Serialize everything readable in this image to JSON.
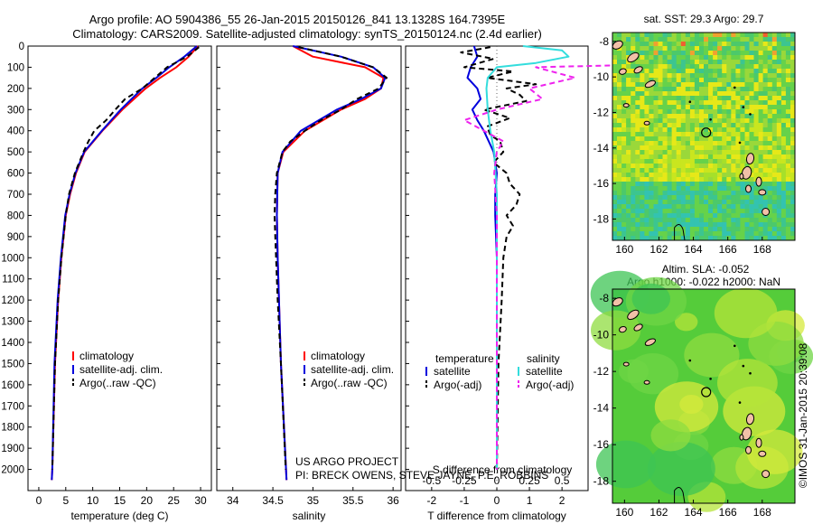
{
  "header": {
    "title_line1": "Argo profile: AO 5904386_55 26-Jan-2015 20150126_841 13.1328S 164.7395E",
    "title_line2": "Climatology: CARS2009. Satellite-adjusted climatology: synTS_20150124.nc (2.4d earlier)"
  },
  "colors": {
    "climatology": "#ff0000",
    "satellite": "#0000dd",
    "argo": "#000000",
    "salinity_satellite": "#33dddd",
    "salinity_argo": "#ee22ee",
    "land": "#f2c0a8"
  },
  "footer": {
    "project_line1": "US ARGO PROJECT",
    "project_line2": "PI: BRECK OWENS, STEVE JAYNE, P.E. ROBBINS",
    "stamp": "©IMOS 31-Jan-2015 20:39:08"
  },
  "maps": {
    "sst_title": "sat. SST: 29.3 Argo: 29.7",
    "sla_title_line1": "Altim. SLA: -0.052",
    "sla_title_line2": "Argo h1000: -0.022 h2000: NaN",
    "lon_ticks": [
      "160",
      "162",
      "164",
      "166",
      "168"
    ],
    "lat_ticks": [
      "-8",
      "-10",
      "-12",
      "-14",
      "-16",
      "-18"
    ],
    "float_lon": 164.74,
    "float_lat": -13.13
  },
  "chart_data": [
    {
      "type": "line",
      "name": "temperature",
      "xlabel": "temperature (deg C)",
      "ylabel": "",
      "xlim": [
        -2,
        32
      ],
      "ylim": [
        2100,
        0
      ],
      "xticks": [
        "0",
        "5",
        "10",
        "15",
        "20",
        "25",
        "30"
      ],
      "yticks": [
        "0",
        "100",
        "200",
        "300",
        "400",
        "500",
        "600",
        "700",
        "800",
        "900",
        "1000",
        "1100",
        "1200",
        "1300",
        "1400",
        "1500",
        "1600",
        "1700",
        "1800",
        "1900",
        "2000"
      ],
      "legend": [
        "climatology",
        "satellite-adj. clim.",
        "Argo(..raw -QC)"
      ],
      "series": [
        {
          "name": "climatology",
          "depth": [
            0,
            50,
            100,
            150,
            200,
            300,
            400,
            500,
            600,
            700,
            800,
            1000,
            1200,
            1500,
            2000,
            2050
          ],
          "values": [
            29.5,
            27.8,
            25.5,
            22.5,
            19.8,
            15.5,
            11.8,
            8.5,
            6.9,
            5.8,
            5.0,
            4.2,
            3.6,
            3.0,
            2.5,
            2.4
          ]
        },
        {
          "name": "satellite-adj. clim.",
          "depth": [
            0,
            50,
            100,
            150,
            200,
            300,
            400,
            500,
            600,
            700,
            800,
            1000,
            1200,
            1500,
            2000,
            2050
          ],
          "values": [
            29.3,
            27.0,
            24.2,
            21.8,
            19.2,
            15.2,
            11.7,
            8.4,
            6.8,
            5.7,
            4.9,
            4.1,
            3.5,
            2.9,
            2.5,
            2.4
          ]
        },
        {
          "name": "Argo(..raw -QC)",
          "depth": [
            5,
            50,
            100,
            150,
            200,
            250,
            300,
            350,
            400,
            450,
            500,
            600,
            700,
            800,
            900,
            1000,
            1200,
            1500,
            2000
          ],
          "values": [
            29.7,
            27.5,
            23.8,
            21.5,
            19.2,
            16.0,
            14.2,
            12.5,
            10.3,
            9.2,
            8.3,
            6.7,
            5.6,
            5.0,
            4.6,
            4.2,
            3.6,
            3.0,
            2.5
          ]
        }
      ]
    },
    {
      "type": "line",
      "name": "salinity",
      "xlabel": "salinity",
      "ylabel": "",
      "xlim": [
        33.8,
        36.1
      ],
      "ylim": [
        2100,
        0
      ],
      "xticks": [
        "34",
        "34.5",
        "35",
        "35.5",
        "36"
      ],
      "legend": [
        "climatology",
        "satellite-adj. clim.",
        "Argo(..raw -QC)"
      ],
      "series": [
        {
          "name": "climatology",
          "depth": [
            0,
            50,
            100,
            150,
            200,
            250,
            300,
            400,
            500,
            600,
            800,
            1000,
            1500,
            2050
          ],
          "values": [
            34.75,
            35.0,
            35.65,
            35.88,
            35.85,
            35.65,
            35.35,
            34.9,
            34.63,
            34.56,
            34.55,
            34.56,
            34.6,
            34.67
          ]
        },
        {
          "name": "satellite-adj. clim.",
          "depth": [
            0,
            50,
            100,
            150,
            200,
            250,
            300,
            400,
            500,
            600,
            800,
            1000,
            1500,
            2050
          ],
          "values": [
            34.75,
            35.35,
            35.75,
            35.9,
            35.85,
            35.6,
            35.3,
            34.85,
            34.62,
            34.56,
            34.55,
            34.56,
            34.6,
            34.67
          ]
        },
        {
          "name": "Argo(..raw -QC)",
          "depth": [
            5,
            50,
            100,
            150,
            200,
            250,
            300,
            350,
            400,
            450,
            500,
            600,
            700,
            800,
            1000,
            1200,
            1500,
            2000
          ],
          "values": [
            34.82,
            35.35,
            35.75,
            35.92,
            35.82,
            35.55,
            35.35,
            35.1,
            34.9,
            34.72,
            34.62,
            34.55,
            34.53,
            34.52,
            34.54,
            34.56,
            34.6,
            34.66
          ]
        }
      ]
    },
    {
      "type": "line",
      "name": "differences",
      "xlabel": "T difference from climatology",
      "xlabel_top": "S difference from climatology",
      "xlim": [
        -2.8,
        2.8
      ],
      "ylim": [
        2100,
        0
      ],
      "xticks": [
        "-2",
        "-1",
        "0",
        "1",
        "2"
      ],
      "xticks_top": [
        "-0.5",
        "-0.25",
        "0",
        "0.25",
        "0.5"
      ],
      "legend_headers": [
        "temperature",
        "salinity"
      ],
      "legend": [
        "satellite",
        "Argo(-adj)",
        "satellite",
        "Argo(-adj)"
      ],
      "series": [
        {
          "name": "temperature satellite",
          "depth": [
            0,
            50,
            100,
            150,
            200,
            250,
            300,
            350,
            400,
            500,
            600,
            700,
            800,
            1000,
            1500,
            2000
          ],
          "values": [
            -0.7,
            -0.6,
            -0.8,
            -0.9,
            -0.6,
            -0.5,
            -0.75,
            -0.6,
            -0.4,
            -0.1,
            0.0,
            -0.05,
            -0.05,
            0.0,
            0.0,
            0.0
          ]
        },
        {
          "name": "temperature Argo(-adj)",
          "depth": [
            5,
            30,
            60,
            100,
            120,
            150,
            180,
            200,
            230,
            260,
            300,
            340,
            380,
            420,
            450,
            500,
            550,
            600,
            650,
            700,
            750,
            800,
            850,
            900,
            1000,
            1200,
            1500,
            2000
          ],
          "values": [
            -0.2,
            -1.1,
            -0.1,
            -1.0,
            0.5,
            -0.3,
            1.2,
            0.3,
            0.7,
            0.9,
            -0.4,
            0.4,
            -0.3,
            -0.2,
            0.1,
            0.2,
            -0.1,
            0.3,
            0.4,
            0.7,
            0.6,
            0.3,
            0.5,
            0.3,
            0.2,
            0.15,
            0.05,
            0.0
          ]
        },
        {
          "name": "salinity satellite",
          "depth": [
            0,
            20,
            50,
            80,
            100,
            150,
            200,
            300,
            400,
            500,
            700,
            1000,
            1500,
            2000
          ],
          "values": [
            0.2,
            0.5,
            0.55,
            0.3,
            0.0,
            -0.07,
            -0.08,
            -0.07,
            -0.05,
            -0.02,
            0.0,
            0.0,
            0.0,
            0.0
          ]
        },
        {
          "name": "salinity Argo(-adj)",
          "depth": [
            20,
            40,
            60,
            80,
            100,
            150,
            200,
            250,
            300,
            350,
            400,
            450,
            500,
            600,
            800,
            1000,
            1500,
            2000
          ],
          "values": [
            0.9,
            1.4,
            0.9,
            1.7,
            0.3,
            0.6,
            0.25,
            0.35,
            0.0,
            -0.25,
            -0.1,
            0.05,
            0.0,
            -0.02,
            0.0,
            0.0,
            0.0,
            0.0
          ]
        }
      ]
    }
  ]
}
